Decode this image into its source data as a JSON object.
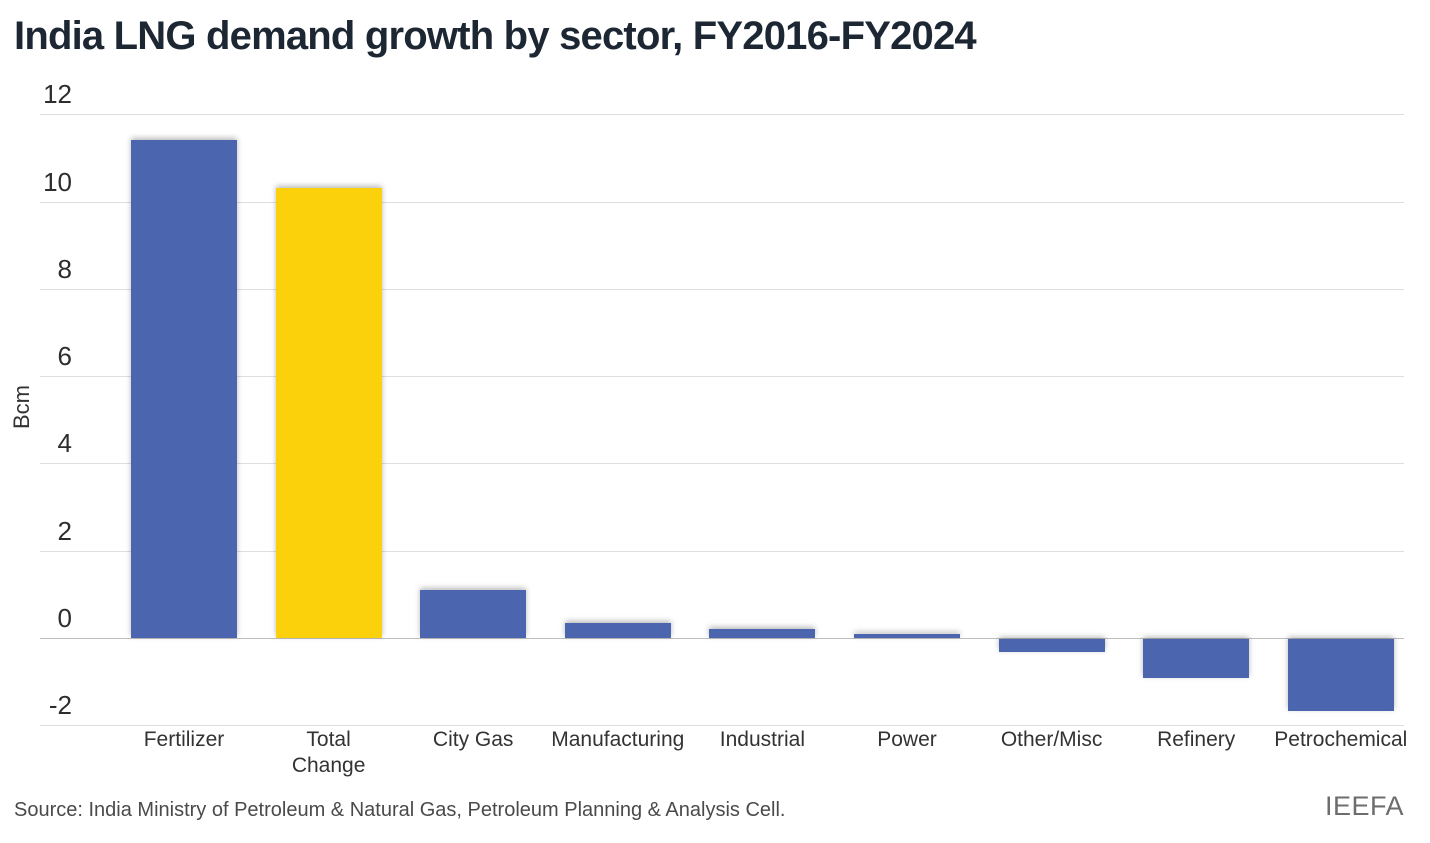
{
  "header": {
    "title": "India LNG demand growth by sector, FY2016-FY2024"
  },
  "chart_data": {
    "type": "bar",
    "title": "India LNG demand growth by sector, FY2016-FY2024",
    "xlabel": "",
    "ylabel": "Bcm",
    "ylim": [
      -2.8,
      12.6
    ],
    "yticks": [
      12,
      10,
      8,
      6,
      4,
      2,
      0,
      -2
    ],
    "grid": "horizontal",
    "legend": "none",
    "categories": [
      "Fertilizer",
      "Total Change",
      "City Gas",
      "Manufacturing",
      "Industrial",
      "Power",
      "Other/Misc",
      "Refinery",
      "Petrochemical"
    ],
    "category_display": [
      "Fertilizer",
      "Total\nChange",
      "City Gas",
      "Manufacturing",
      "Industrial",
      "Power",
      "Other/Misc",
      "Refinery",
      "Petrochemical"
    ],
    "values": [
      11.4,
      10.3,
      1.1,
      0.35,
      0.2,
      0.1,
      -0.3,
      -0.9,
      -1.65
    ],
    "bar_colors": [
      "#4B66AE",
      "#FAD10A",
      "#4B66AE",
      "#4B66AE",
      "#4B66AE",
      "#4B66AE",
      "#4B66AE",
      "#4B66AE",
      "#4B66AE"
    ],
    "colors": {
      "default_bar": "#4B66AE",
      "highlight_bar": "#FAD10A",
      "gridline": "#dedede",
      "zero_line": "#bdbdbd",
      "title_text": "#1d2733",
      "tick_text": "#2d2d2d"
    }
  },
  "footer": {
    "source": "Source: India Ministry of Petroleum & Natural Gas, Petroleum Planning & Analysis Cell.",
    "brand": "IEEFA"
  }
}
